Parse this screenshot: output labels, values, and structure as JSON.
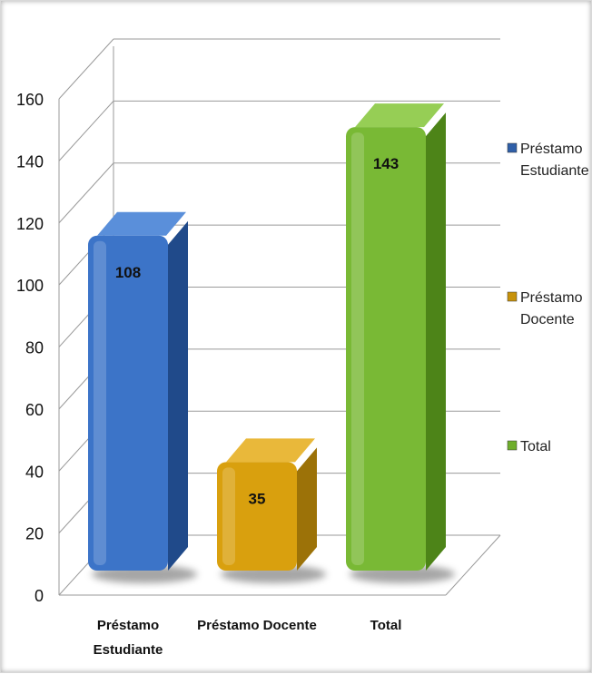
{
  "chart_data": {
    "type": "bar",
    "categories": [
      "Préstamo Estudiante",
      "Préstamo Docente",
      "Total"
    ],
    "category_label_lines": [
      [
        "Préstamo",
        "Estudiante"
      ],
      [
        "Préstamo Docente"
      ],
      [
        "Total"
      ]
    ],
    "values": [
      108,
      35,
      143
    ],
    "data_labels": [
      "108",
      "35",
      "143"
    ],
    "ylim": [
      0,
      160
    ],
    "yticks": [
      0,
      20,
      40,
      60,
      80,
      100,
      120,
      140,
      160
    ],
    "grid": true,
    "style": "3d-column",
    "legend_position": "right",
    "legend": [
      {
        "lines": [
          "Préstamo",
          "Estudiante"
        ],
        "color": "#2F5FA8"
      },
      {
        "lines": [
          "Préstamo",
          "Docente"
        ],
        "color": "#C7920B"
      },
      {
        "lines": [
          "Total"
        ],
        "color": "#6FAE2C"
      }
    ],
    "colors": [
      {
        "front": "#3C74C8",
        "side": "#204A8A",
        "top": "#5A8FDA"
      },
      {
        "front": "#D9A00E",
        "side": "#9C7208",
        "top": "#E9B83A"
      },
      {
        "front": "#79B935",
        "side": "#4D8418",
        "top": "#96CE55"
      }
    ]
  }
}
